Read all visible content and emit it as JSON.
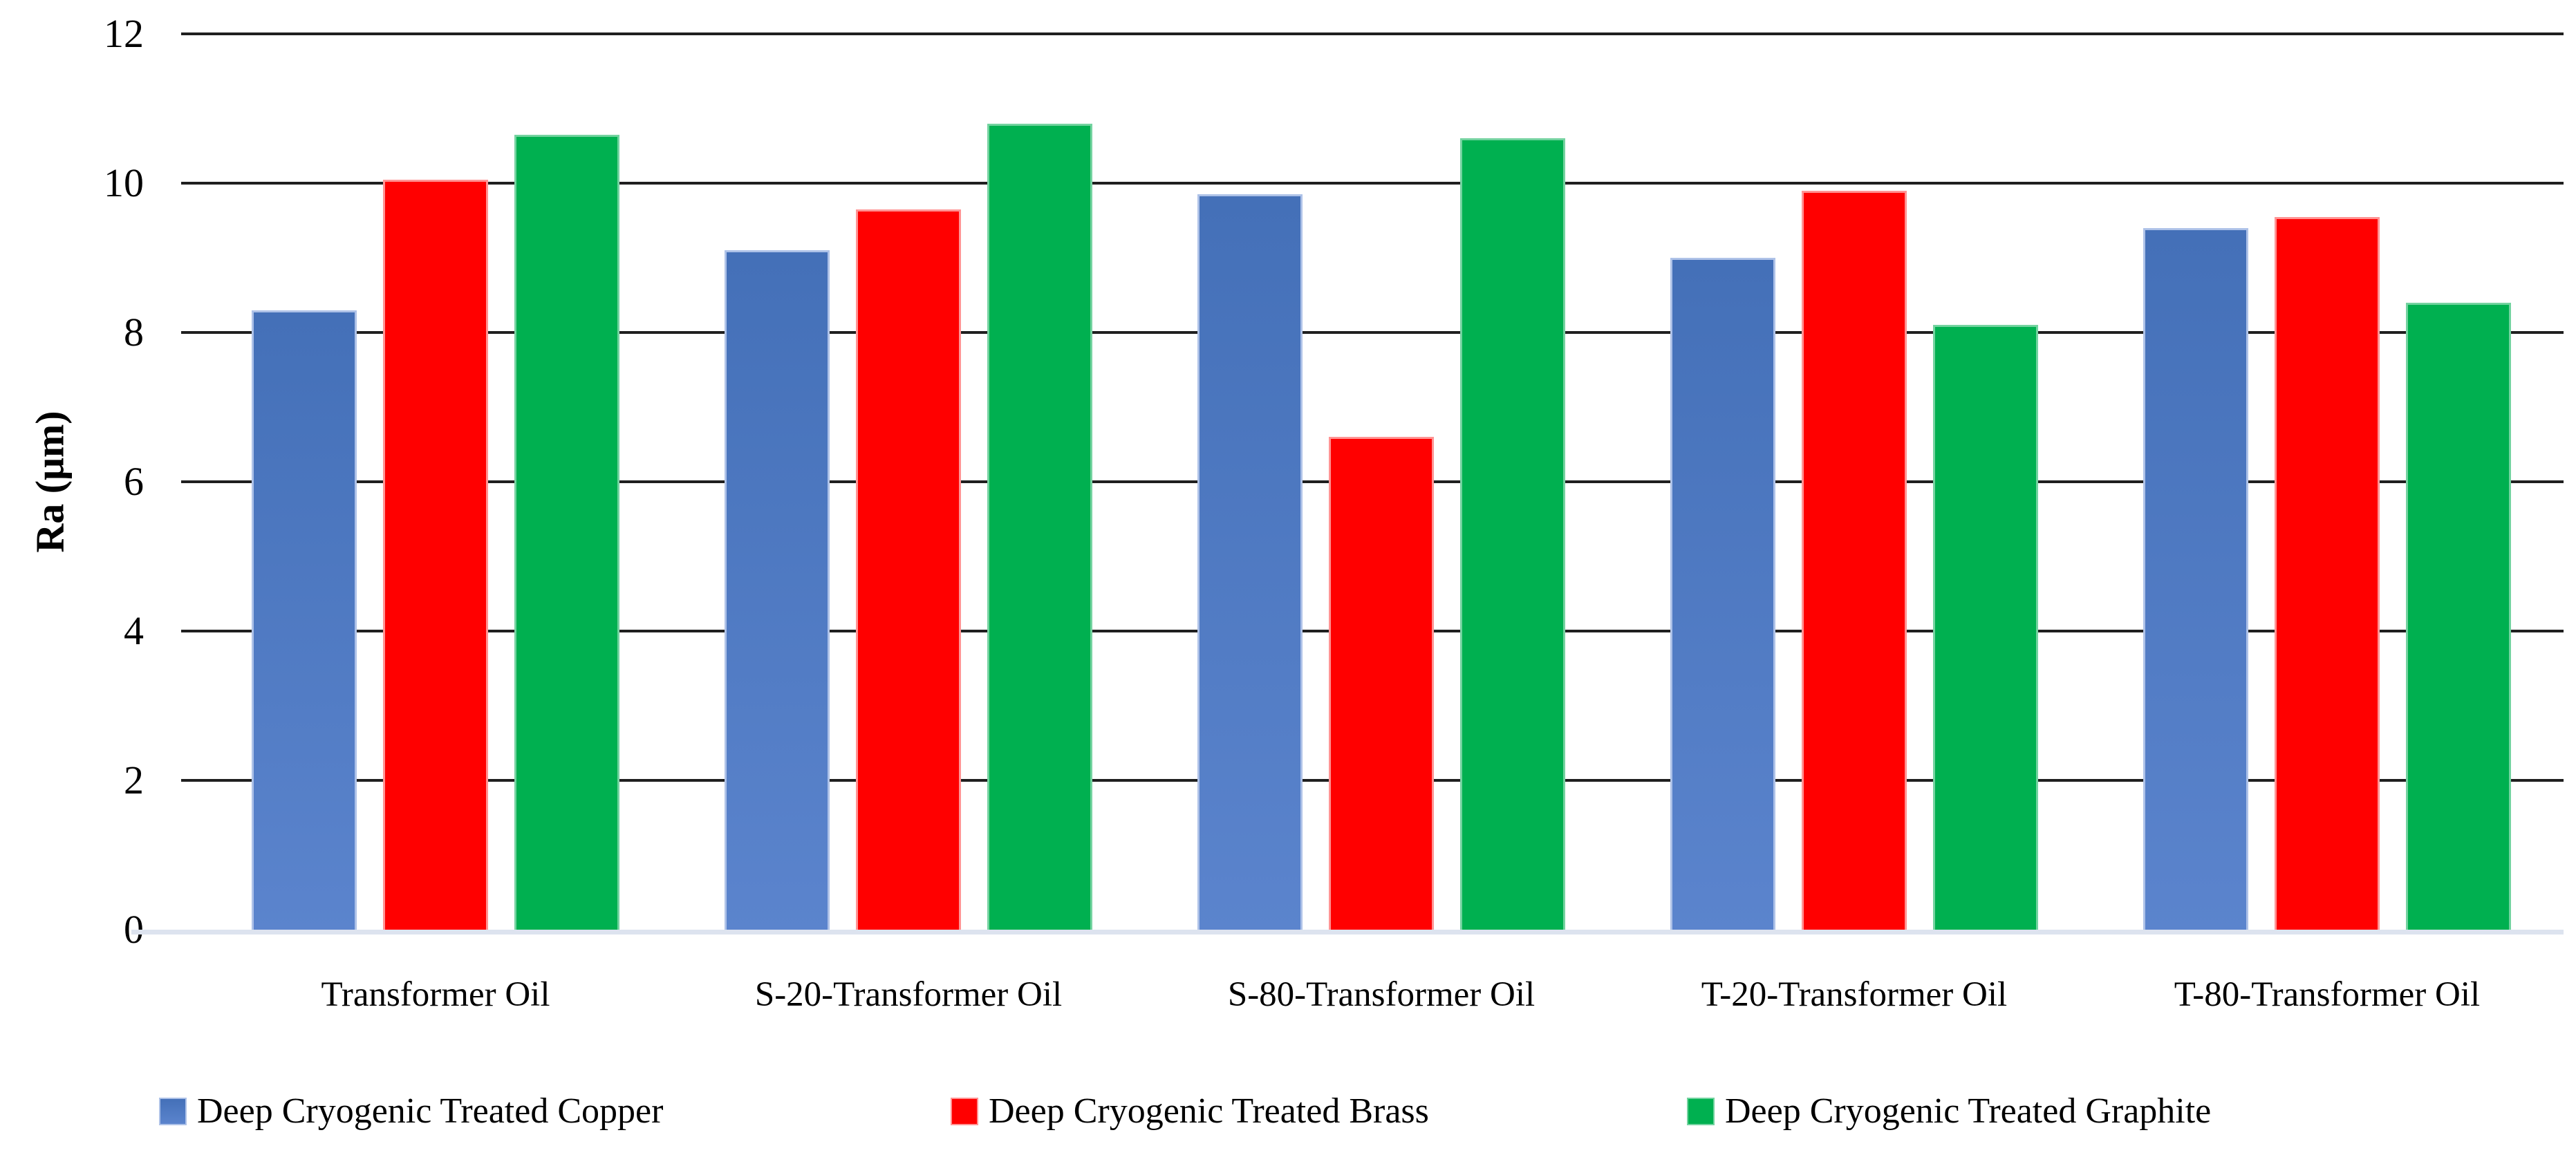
{
  "chart_data": {
    "type": "bar",
    "title": "",
    "xlabel": "",
    "ylabel": "Ra (μm)",
    "ylim": [
      0,
      12
    ],
    "yticks": [
      0,
      2,
      4,
      6,
      8,
      10,
      12
    ],
    "grid": true,
    "legend_position": "bottom",
    "categories": [
      "Transformer Oil",
      "S-20-Transformer Oil",
      "S-80-Transformer Oil",
      "T-20-Transformer Oil",
      "T-80-Transformer Oil"
    ],
    "series": [
      {
        "name": "Deep Cryogenic Treated Copper",
        "color": "#4F7AC1",
        "values": [
          8.3,
          9.1,
          9.85,
          9.0,
          9.4
        ]
      },
      {
        "name": "Deep Cryogenic Treated Brass",
        "color": "#FF0000",
        "values": [
          10.05,
          9.65,
          6.6,
          9.9,
          9.55
        ]
      },
      {
        "name": "Deep Cryogenic Treated Graphite",
        "color": "#00B050",
        "values": [
          10.65,
          10.8,
          10.6,
          8.1,
          8.4
        ]
      }
    ]
  }
}
